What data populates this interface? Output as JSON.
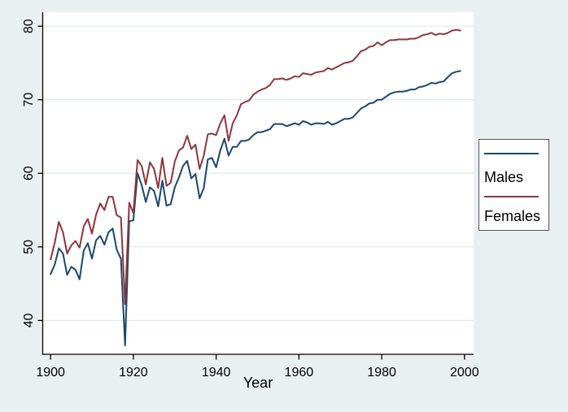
{
  "chart_data": {
    "type": "line",
    "title": "",
    "xlabel": "Year",
    "ylabel": "",
    "x_ticks": [
      1900,
      1920,
      1940,
      1960,
      1980,
      2000
    ],
    "y_ticks": [
      40,
      50,
      60,
      70,
      80
    ],
    "xlim": [
      1898.1,
      2002.2
    ],
    "ylim": [
      35.4,
      81.9
    ],
    "grid": "horizontal",
    "legend_position": "outside-right",
    "x": [
      1900,
      1901,
      1902,
      1903,
      1904,
      1905,
      1906,
      1907,
      1908,
      1909,
      1910,
      1911,
      1912,
      1913,
      1914,
      1915,
      1916,
      1917,
      1918,
      1919,
      1920,
      1921,
      1922,
      1923,
      1924,
      1925,
      1926,
      1927,
      1928,
      1929,
      1930,
      1931,
      1932,
      1933,
      1934,
      1935,
      1936,
      1937,
      1938,
      1939,
      1940,
      1941,
      1942,
      1943,
      1944,
      1945,
      1946,
      1947,
      1948,
      1949,
      1950,
      1951,
      1952,
      1953,
      1954,
      1955,
      1956,
      1957,
      1958,
      1959,
      1960,
      1961,
      1962,
      1963,
      1964,
      1965,
      1966,
      1967,
      1968,
      1969,
      1970,
      1971,
      1972,
      1973,
      1974,
      1975,
      1976,
      1977,
      1978,
      1979,
      1980,
      1981,
      1982,
      1983,
      1984,
      1985,
      1986,
      1987,
      1988,
      1989,
      1990,
      1991,
      1992,
      1993,
      1994,
      1995,
      1996,
      1997,
      1998,
      1999
    ],
    "series": [
      {
        "name": "Males",
        "color": "#1a476f",
        "values": [
          46.3,
          47.6,
          49.8,
          49.1,
          46.2,
          47.3,
          46.9,
          45.6,
          49.5,
          50.5,
          48.4,
          50.9,
          51.5,
          50.3,
          52.0,
          52.5,
          49.6,
          48.4,
          36.6,
          53.5,
          53.6,
          60.0,
          58.4,
          56.1,
          58.1,
          57.6,
          55.5,
          59.0,
          55.6,
          55.8,
          58.1,
          59.4,
          61.0,
          61.7,
          59.3,
          59.9,
          56.6,
          58.0,
          61.9,
          62.1,
          60.8,
          63.1,
          64.7,
          62.4,
          63.6,
          63.6,
          64.4,
          64.4,
          64.6,
          65.2,
          65.6,
          65.6,
          65.8,
          66.0,
          66.7,
          66.7,
          66.7,
          66.4,
          66.6,
          66.8,
          66.6,
          67.1,
          66.9,
          66.6,
          66.8,
          66.8,
          66.7,
          67.0,
          66.6,
          66.8,
          67.1,
          67.4,
          67.4,
          67.6,
          68.2,
          68.8,
          69.1,
          69.5,
          69.6,
          70.0,
          70.0,
          70.4,
          70.8,
          71.0,
          71.1,
          71.1,
          71.2,
          71.4,
          71.4,
          71.7,
          71.8,
          72.0,
          72.3,
          72.2,
          72.4,
          72.5,
          73.1,
          73.6,
          73.8,
          73.9
        ]
      },
      {
        "name": "Females",
        "color": "#90353b",
        "values": [
          48.3,
          50.6,
          53.4,
          52.0,
          49.1,
          50.2,
          50.8,
          49.9,
          52.8,
          53.8,
          51.8,
          54.4,
          55.9,
          55.0,
          56.8,
          56.8,
          54.3,
          54.0,
          42.2,
          56.0,
          54.6,
          61.8,
          61.0,
          58.5,
          61.5,
          60.6,
          58.0,
          62.1,
          58.3,
          58.7,
          61.6,
          63.1,
          63.5,
          65.1,
          63.3,
          63.9,
          60.6,
          62.4,
          65.3,
          65.4,
          65.2,
          66.8,
          67.9,
          64.4,
          66.8,
          67.9,
          69.4,
          69.7,
          69.9,
          70.7,
          71.1,
          71.4,
          71.6,
          72.0,
          72.8,
          72.8,
          72.9,
          72.7,
          72.9,
          73.2,
          73.1,
          73.6,
          73.5,
          73.4,
          73.7,
          73.8,
          73.9,
          74.3,
          74.1,
          74.4,
          74.7,
          75.0,
          75.1,
          75.3,
          75.9,
          76.6,
          76.8,
          77.2,
          77.3,
          77.8,
          77.4,
          77.8,
          78.1,
          78.1,
          78.2,
          78.2,
          78.2,
          78.3,
          78.3,
          78.5,
          78.8,
          78.9,
          79.1,
          78.8,
          79.0,
          78.9,
          79.1,
          79.4,
          79.5,
          79.4
        ]
      }
    ]
  },
  "colors": {
    "background": "#e9f0f2",
    "plot_background": "#ffffff",
    "gridline": "#dfeaf0",
    "axis": "#000000",
    "legend_border": "#565656",
    "text": "#000000"
  }
}
